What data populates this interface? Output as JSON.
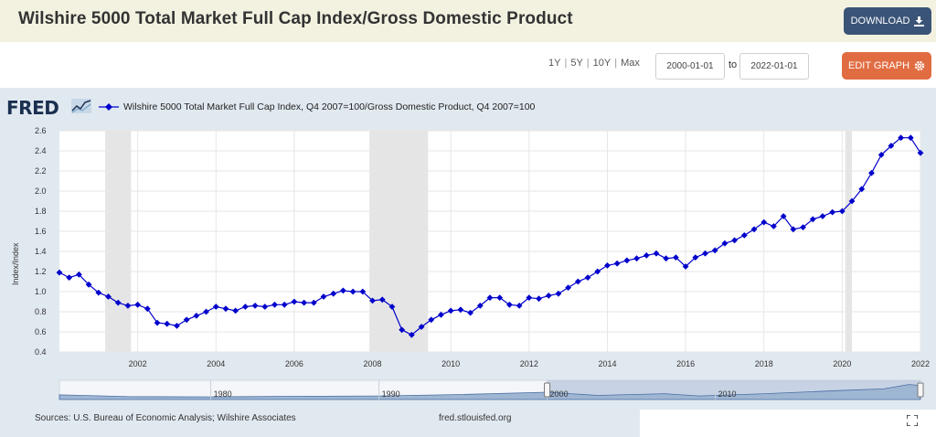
{
  "header": {
    "title": "Wilshire 5000 Total Market Full Cap Index/Gross Domestic Product",
    "download_label": "DOWNLOAD"
  },
  "controls": {
    "range_1y": "1Y",
    "range_5y": "5Y",
    "range_10y": "10Y",
    "range_max": "Max",
    "separator": "|",
    "start_date": "2000-01-01",
    "to_label": "to",
    "end_date": "2022-01-01",
    "edit_label": "EDIT GRAPH"
  },
  "brand": {
    "logo": "FRED"
  },
  "footer": {
    "sources": "Sources: U.S. Bureau of Economic Analysis; Wilshire Associates",
    "site": "fred.stlouisfed.org"
  },
  "navigator": {
    "labels": [
      "1980",
      "1990",
      "2000",
      "2010"
    ]
  },
  "icons": {
    "download": "download-icon",
    "edit": "gear-icon",
    "fullscreen": "fullscreen-icon",
    "fred_mark": "line-chart-icon"
  },
  "colors": {
    "series": "#0000cc",
    "download_button": "#3a5478",
    "edit_button": "#e16c42",
    "recession": "#e5e5e5",
    "title_bar": "#f3f2e1",
    "panel": "#e1e9f0"
  },
  "chart_data": {
    "type": "line",
    "xlabel": "",
    "ylabel": "Index/Index",
    "xlim": [
      2000.0,
      2022.0
    ],
    "ylim": [
      0.4,
      2.6
    ],
    "y_ticks": [
      0.4,
      0.6,
      0.8,
      1.0,
      1.2,
      1.4,
      1.6,
      1.8,
      2.0,
      2.2,
      2.4,
      2.6
    ],
    "x_ticks": [
      2002,
      2004,
      2006,
      2008,
      2010,
      2012,
      2014,
      2016,
      2018,
      2020,
      2022
    ],
    "grid": true,
    "legend_position": "top",
    "recessions": [
      [
        2001.17,
        2001.83
      ],
      [
        2007.92,
        2009.42
      ],
      [
        2020.08,
        2020.25
      ]
    ],
    "series": [
      {
        "name": "Wilshire 5000 Total Market Full Cap Index, Q4 2007=100/Gross Domestic Product, Q4 2007=100",
        "x": [
          2000.0,
          2000.25,
          2000.5,
          2000.75,
          2001.0,
          2001.25,
          2001.5,
          2001.75,
          2002.0,
          2002.25,
          2002.5,
          2002.75,
          2003.0,
          2003.25,
          2003.5,
          2003.75,
          2004.0,
          2004.25,
          2004.5,
          2004.75,
          2005.0,
          2005.25,
          2005.5,
          2005.75,
          2006.0,
          2006.25,
          2006.5,
          2006.75,
          2007.0,
          2007.25,
          2007.5,
          2007.75,
          2008.0,
          2008.25,
          2008.5,
          2008.75,
          2009.0,
          2009.25,
          2009.5,
          2009.75,
          2010.0,
          2010.25,
          2010.5,
          2010.75,
          2011.0,
          2011.25,
          2011.5,
          2011.75,
          2012.0,
          2012.25,
          2012.5,
          2012.75,
          2013.0,
          2013.25,
          2013.5,
          2013.75,
          2014.0,
          2014.25,
          2014.5,
          2014.75,
          2015.0,
          2015.25,
          2015.5,
          2015.75,
          2016.0,
          2016.25,
          2016.5,
          2016.75,
          2017.0,
          2017.25,
          2017.5,
          2017.75,
          2018.0,
          2018.25,
          2018.5,
          2018.75,
          2019.0,
          2019.25,
          2019.5,
          2019.75,
          2020.0,
          2020.25,
          2020.5,
          2020.75,
          2021.0,
          2021.25,
          2021.5,
          2021.75,
          2022.0
        ],
        "y": [
          1.19,
          1.14,
          1.17,
          1.07,
          0.99,
          0.95,
          0.89,
          0.86,
          0.87,
          0.83,
          0.69,
          0.68,
          0.66,
          0.72,
          0.76,
          0.8,
          0.85,
          0.83,
          0.81,
          0.85,
          0.86,
          0.85,
          0.87,
          0.87,
          0.9,
          0.89,
          0.89,
          0.95,
          0.98,
          1.01,
          1.0,
          1.0,
          0.91,
          0.92,
          0.85,
          0.62,
          0.57,
          0.65,
          0.72,
          0.77,
          0.81,
          0.82,
          0.79,
          0.86,
          0.94,
          0.94,
          0.87,
          0.86,
          0.94,
          0.93,
          0.96,
          0.98,
          1.04,
          1.1,
          1.14,
          1.2,
          1.26,
          1.28,
          1.31,
          1.33,
          1.36,
          1.38,
          1.33,
          1.34,
          1.25,
          1.34,
          1.38,
          1.41,
          1.48,
          1.51,
          1.56,
          1.62,
          1.69,
          1.65,
          1.75,
          1.62,
          1.64,
          1.72,
          1.75,
          1.79,
          1.8,
          1.9,
          2.02,
          2.18,
          2.36,
          2.45,
          2.53,
          2.53,
          2.38
        ]
      }
    ]
  }
}
